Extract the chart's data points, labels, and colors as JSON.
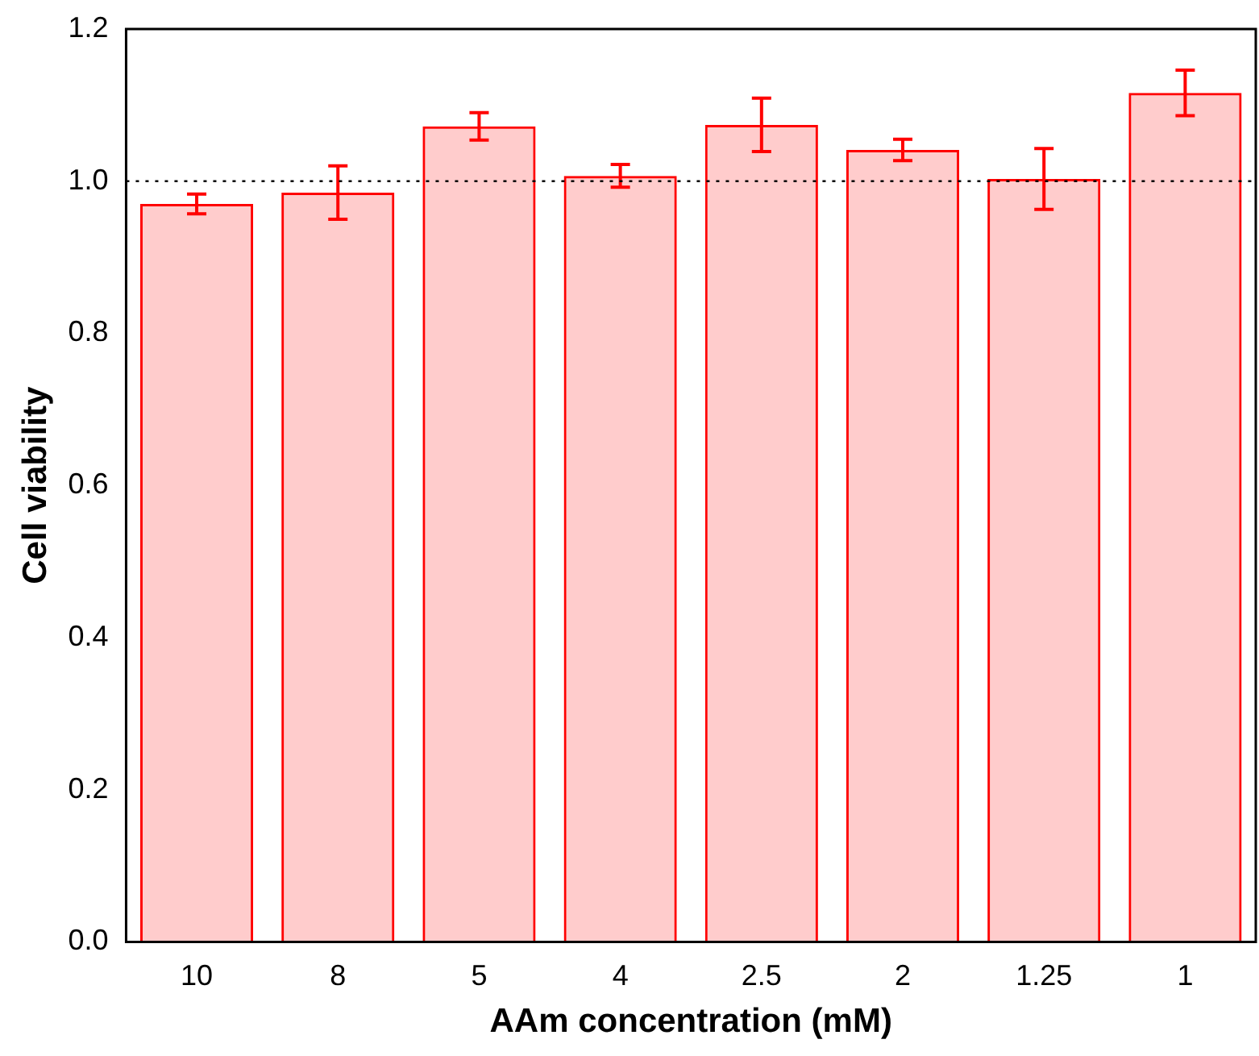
{
  "chart_data": {
    "type": "bar",
    "xlabel": "AAm concentration (mM)",
    "ylabel": "Cell viability",
    "categories": [
      "10",
      "8",
      "5",
      "4",
      "2.5",
      "2",
      "1.25",
      "1"
    ],
    "values": [
      0.97,
      0.985,
      1.072,
      1.007,
      1.074,
      1.041,
      1.003,
      1.116
    ],
    "errors": [
      0.013,
      0.035,
      0.018,
      0.015,
      0.035,
      0.014,
      0.04,
      0.03
    ],
    "color": "#ff0000",
    "ylim": [
      0,
      1.2
    ],
    "yticks": [
      {
        "value": 0,
        "label": "0.0"
      },
      0.2,
      0.4,
      0.6,
      0.8,
      {
        "value": 1,
        "label": "1.0"
      },
      {
        "value": 1.2,
        "label": "1.2"
      }
    ],
    "ref_lines": [
      {
        "axis": "y",
        "value": 1,
        "color": "#000000",
        "line_style": "dotted"
      }
    ],
    "grid": false,
    "legend": false
  }
}
